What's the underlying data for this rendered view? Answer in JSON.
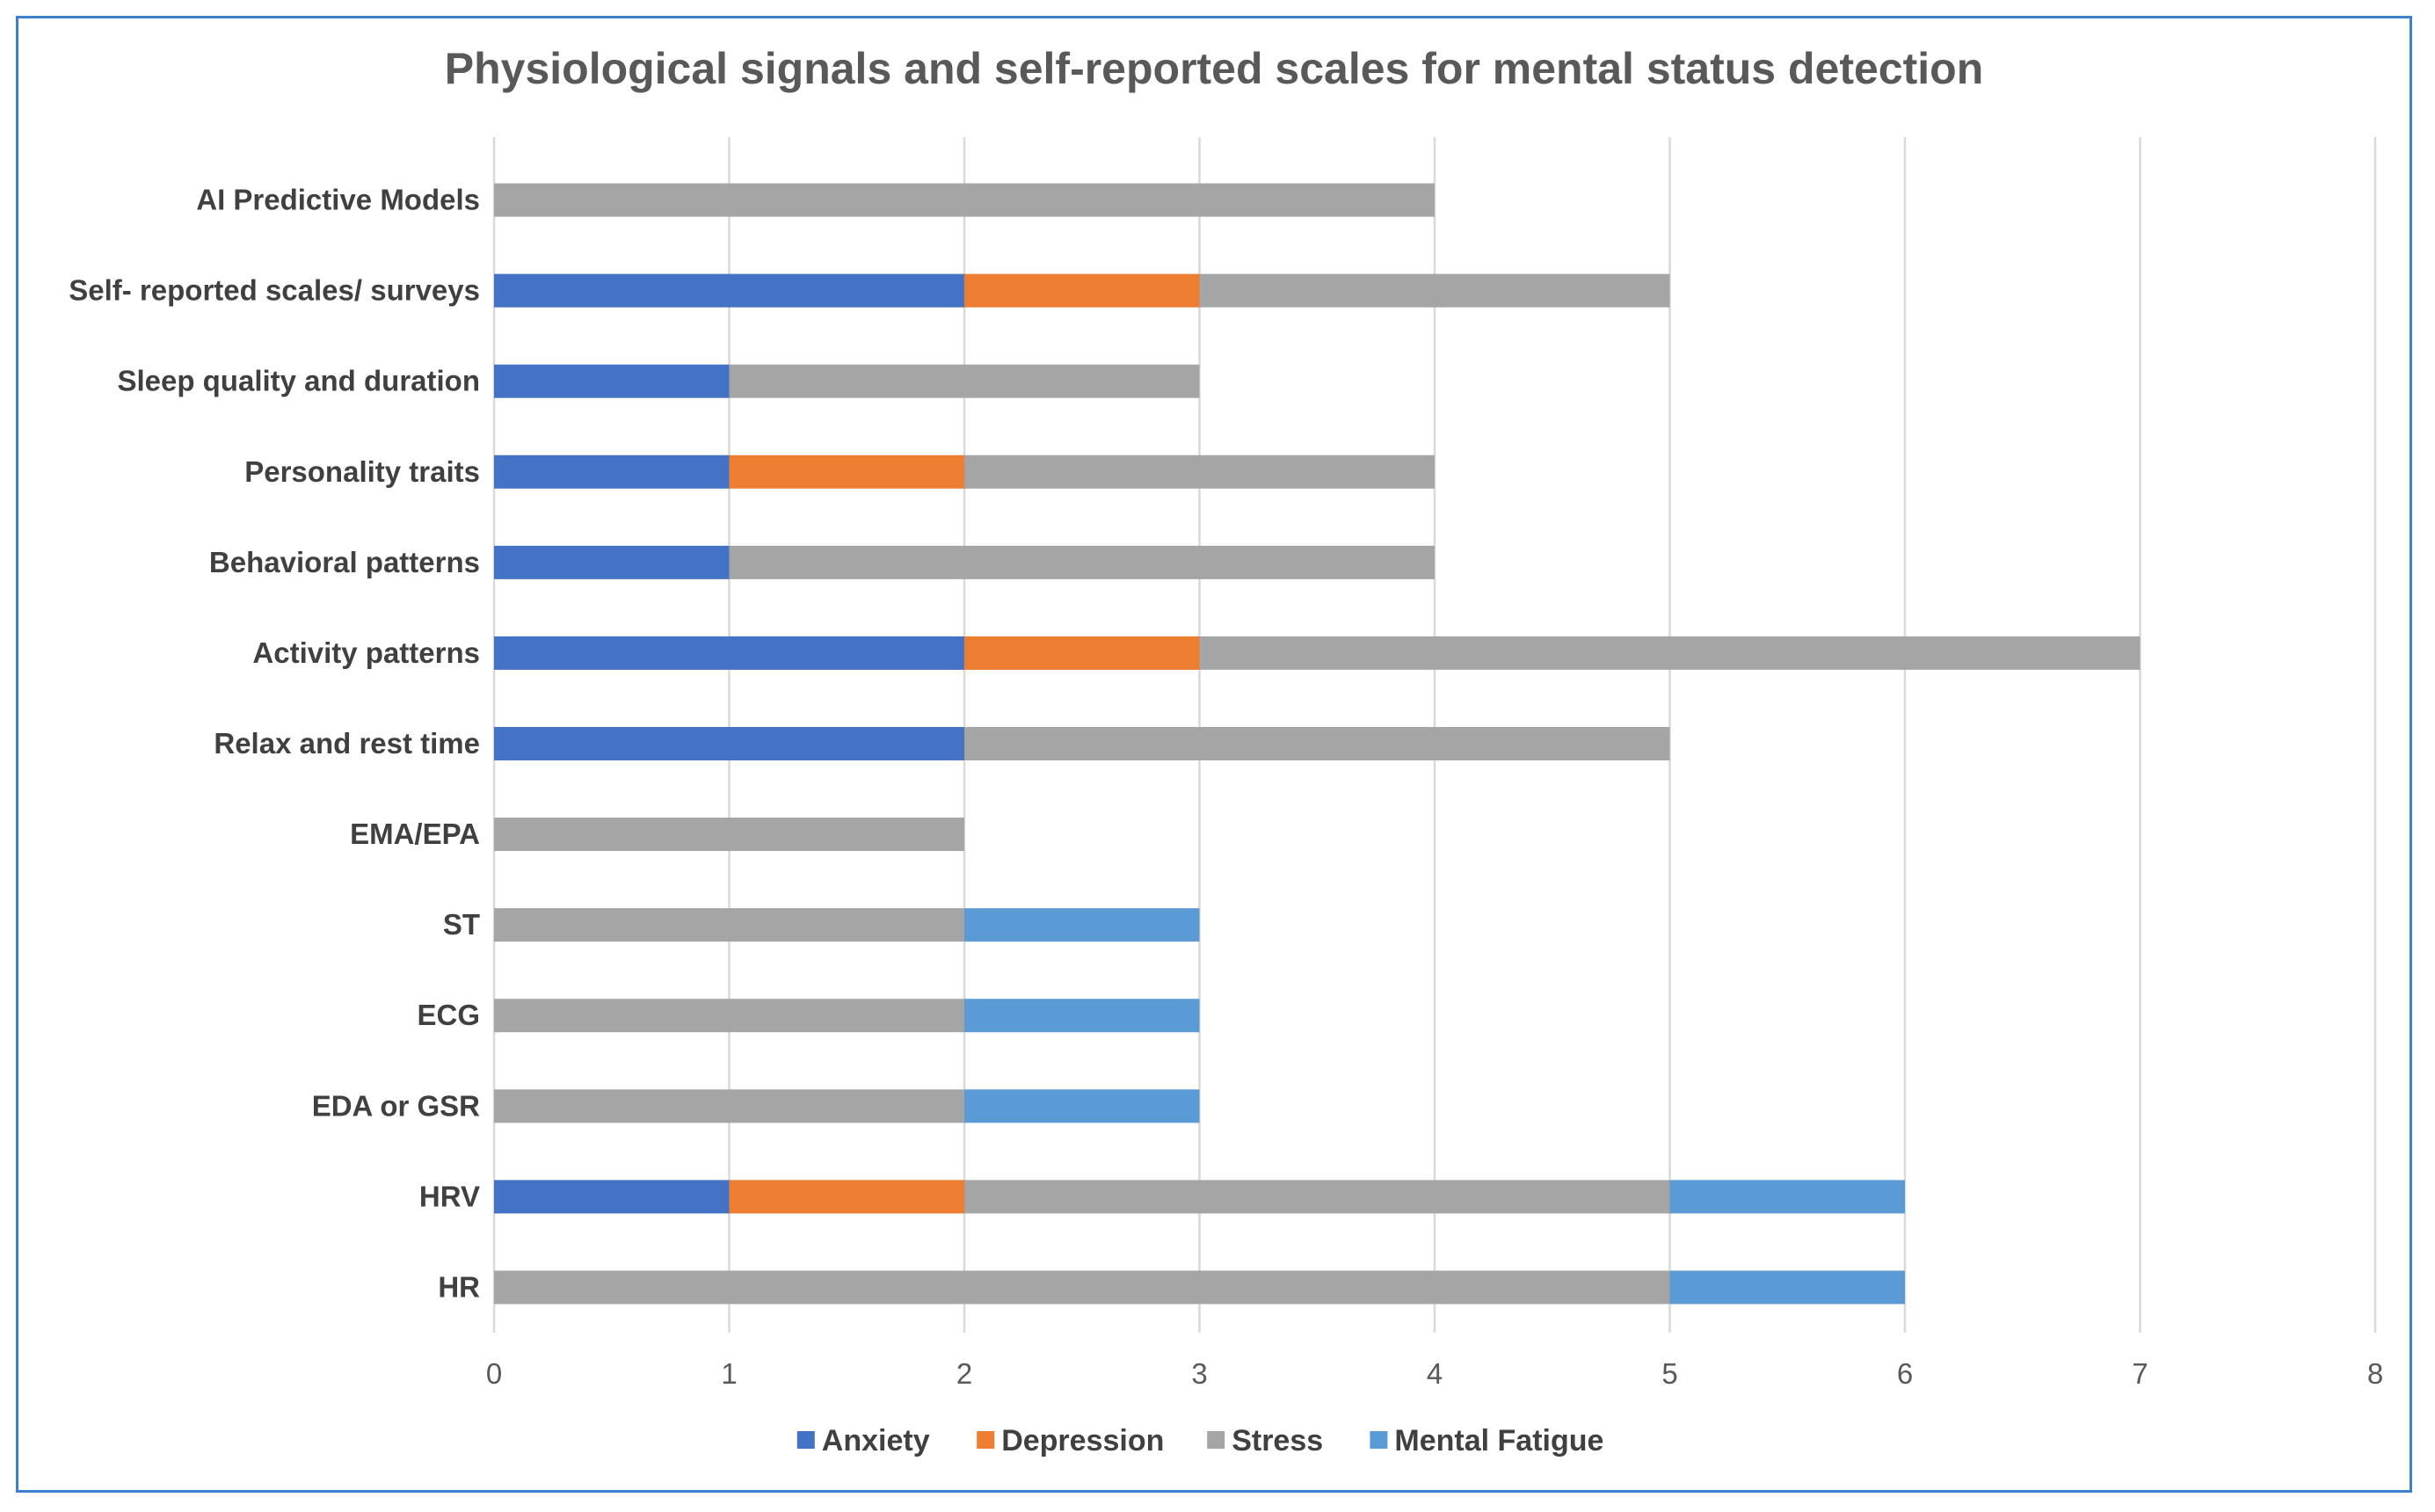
{
  "chart_data": {
    "type": "bar",
    "orientation": "horizontal",
    "stacked": true,
    "title": "Physiological  signals and self-reported scales for mental status detection",
    "xlabel": "",
    "ylabel": "",
    "xlim": [
      0,
      8
    ],
    "x_ticks": [
      0,
      1,
      2,
      3,
      4,
      5,
      6,
      7,
      8
    ],
    "grid": true,
    "legend_position": "bottom",
    "categories": [
      "AI Predictive Models",
      "Self- reported scales/ surveys",
      "Sleep quality and duration",
      "Personality traits",
      "Behavioral patterns",
      "Activity patterns",
      "Relax and rest time",
      "EMA/EPA",
      "ST",
      "ECG",
      "EDA or  GSR",
      "HRV",
      "HR"
    ],
    "series": [
      {
        "name": "Anxiety",
        "color": "#4472c4",
        "values": [
          0,
          2,
          1,
          1,
          1,
          2,
          2,
          0,
          0,
          0,
          0,
          1,
          0
        ]
      },
      {
        "name": "Depression",
        "color": "#ed7d31",
        "values": [
          0,
          1,
          0,
          1,
          0,
          1,
          0,
          0,
          0,
          0,
          0,
          1,
          0
        ]
      },
      {
        "name": "Stress",
        "color": "#a5a5a5",
        "values": [
          4,
          2,
          2,
          2,
          3,
          4,
          3,
          2,
          2,
          2,
          2,
          3,
          5
        ]
      },
      {
        "name": "Mental Fatigue",
        "color": "#5b9bd5",
        "values": [
          0,
          0,
          0,
          0,
          0,
          0,
          0,
          0,
          1,
          1,
          1,
          1,
          1
        ]
      }
    ]
  }
}
